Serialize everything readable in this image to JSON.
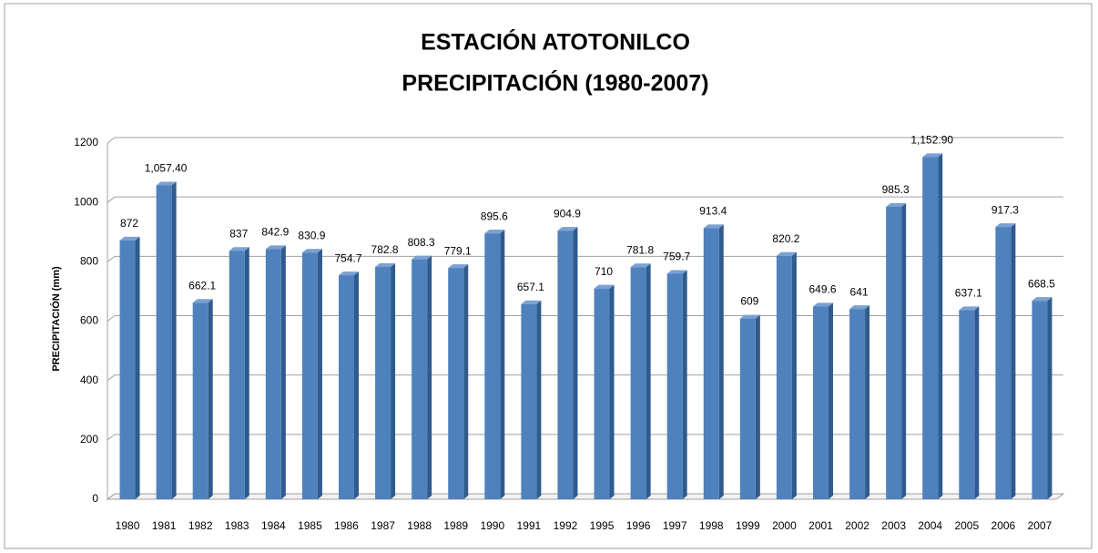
{
  "chart_data": {
    "type": "bar3d",
    "title": "ESTACIÓN ATOTONILCO",
    "subtitle": "PRECIPITACIÓN (1980-2007)",
    "y_label": "PRECIPITACIÓN (mm)",
    "categories": [
      "1980",
      "1981",
      "1982",
      "1983",
      "1984",
      "1985",
      "1986",
      "1987",
      "1988",
      "1989",
      "1990",
      "1991",
      "1992",
      "1995",
      "1996",
      "1997",
      "1998",
      "1999",
      "2000",
      "2001",
      "2002",
      "2003",
      "2004",
      "2005",
      "2006",
      "2007"
    ],
    "values": [
      872,
      1057.4,
      662.1,
      837,
      842.9,
      830.9,
      754.7,
      782.8,
      808.3,
      779.1,
      895.6,
      657.1,
      904.9,
      710,
      781.8,
      759.7,
      913.4,
      609,
      820.2,
      649.6,
      641,
      985.3,
      1152.9,
      637.1,
      917.3,
      668.5
    ],
    "value_labels": [
      "872",
      "1,057.40",
      "662.1",
      "837",
      "842.9",
      "830.9",
      "754.7",
      "782.8",
      "808.3",
      "779.1",
      "895.6",
      "657.1",
      "904.9",
      "710",
      "781.8",
      "759.7",
      "913.4",
      "609",
      "820.2",
      "649.6",
      "641",
      "985.3",
      "1,152.90",
      "637.1",
      "917.3",
      "668.5"
    ],
    "color": "#4f81bd",
    "ylim": [
      0,
      1200
    ],
    "yticks": [
      0,
      200,
      400,
      600,
      800,
      1000,
      1200
    ],
    "grid": true
  }
}
